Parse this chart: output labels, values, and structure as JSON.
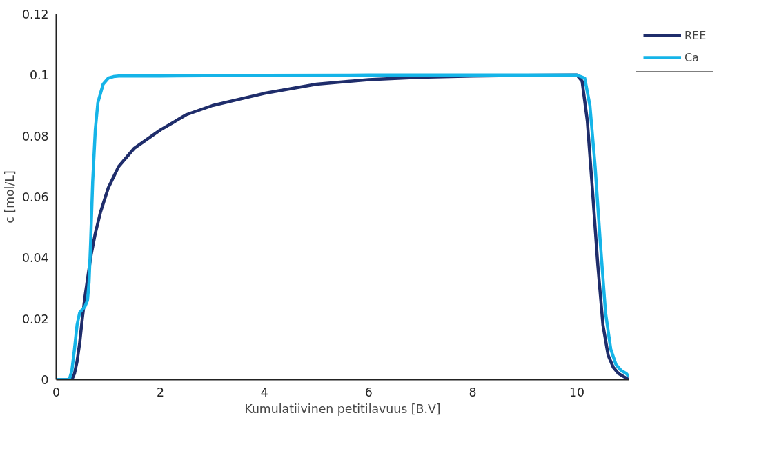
{
  "chart_data": {
    "type": "line",
    "xlabel": "Kumulatiivinen petitilavuus [B.V]",
    "ylabel": "c [mol/L]",
    "xlim": [
      0,
      11
    ],
    "xticks": [
      0,
      2,
      4,
      6,
      8,
      10
    ],
    "ylim": [
      0,
      0.12
    ],
    "yticks": [
      0,
      0.02,
      0.04,
      0.06,
      0.08,
      0.1,
      0.12
    ],
    "grid": false,
    "legend": "top right",
    "marker": "none",
    "line_style": "solid",
    "series": [
      {
        "name": "REE",
        "color": "#1f2d6b",
        "x": [
          0,
          0.3,
          0.35,
          0.4,
          0.45,
          0.5,
          0.55,
          0.6,
          0.67,
          0.75,
          0.85,
          1,
          1.2,
          1.5,
          2,
          2.5,
          3,
          3.5,
          4,
          5,
          6,
          7,
          8,
          9,
          10,
          10.1,
          10.2,
          10.3,
          10.4,
          10.5,
          10.6,
          10.7,
          10.8,
          10.9,
          11
        ],
        "values": [
          0,
          0,
          0.002,
          0.006,
          0.012,
          0.02,
          0.027,
          0.033,
          0.041,
          0.048,
          0.055,
          0.063,
          0.07,
          0.076,
          0.082,
          0.087,
          0.09,
          0.092,
          0.094,
          0.097,
          0.0985,
          0.0993,
          0.0997,
          0.0999,
          0.1,
          0.098,
          0.085,
          0.062,
          0.038,
          0.018,
          0.008,
          0.004,
          0.002,
          0.001,
          0
        ]
      },
      {
        "name": "Ca",
        "color": "#15b4e8",
        "x": [
          0,
          0.25,
          0.3,
          0.35,
          0.4,
          0.45,
          0.55,
          0.6,
          0.63,
          0.66,
          0.7,
          0.75,
          0.8,
          0.9,
          1,
          1.1,
          1.2,
          1.5,
          2,
          4,
          6,
          8,
          10,
          10.15,
          10.25,
          10.35,
          10.45,
          10.55,
          10.65,
          10.75,
          10.85,
          10.95,
          11
        ],
        "values": [
          0,
          0,
          0.003,
          0.01,
          0.018,
          0.022,
          0.024,
          0.026,
          0.032,
          0.045,
          0.065,
          0.082,
          0.091,
          0.097,
          0.099,
          0.0995,
          0.0997,
          0.0997,
          0.0997,
          0.0999,
          0.1,
          0.1,
          0.1,
          0.099,
          0.09,
          0.07,
          0.045,
          0.022,
          0.01,
          0.005,
          0.003,
          0.002,
          0.001
        ]
      }
    ]
  }
}
